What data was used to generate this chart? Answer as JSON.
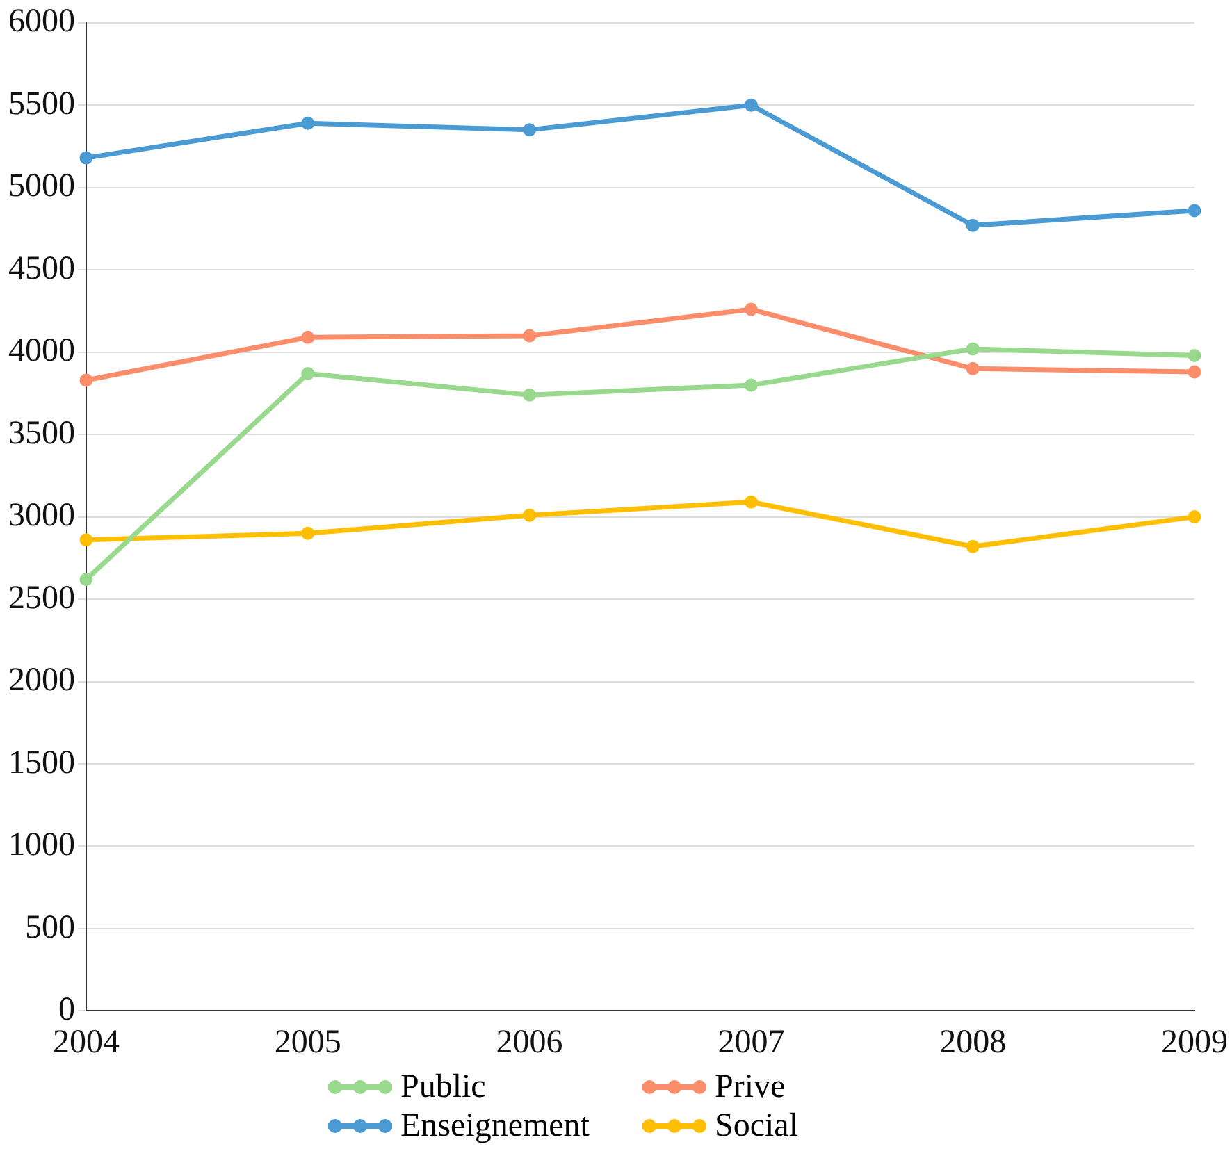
{
  "chart_data": {
    "type": "line",
    "categories": [
      "2004",
      "2005",
      "2006",
      "2007",
      "2008",
      "2009"
    ],
    "series": [
      {
        "name": "Public",
        "color": "#98d98e",
        "values": [
          2620,
          3870,
          3740,
          3800,
          4020,
          3980
        ]
      },
      {
        "name": "Prive",
        "color": "#fc8d6b",
        "values": [
          3830,
          4090,
          4100,
          4260,
          3900,
          3880
        ]
      },
      {
        "name": "Enseignement",
        "color": "#4a9bd4",
        "values": [
          5180,
          5390,
          5350,
          5500,
          4770,
          4860
        ]
      },
      {
        "name": "Social",
        "color": "#ffbf00",
        "values": [
          2860,
          2900,
          3010,
          3090,
          2820,
          3000
        ]
      }
    ],
    "ylim": [
      0,
      6000
    ],
    "yticks": [
      0,
      500,
      1000,
      1500,
      2000,
      2500,
      3000,
      3500,
      4000,
      4500,
      5000,
      5500,
      6000
    ],
    "grid": "y",
    "legend": "bottom",
    "marker": "circle",
    "line_style": "solid"
  }
}
